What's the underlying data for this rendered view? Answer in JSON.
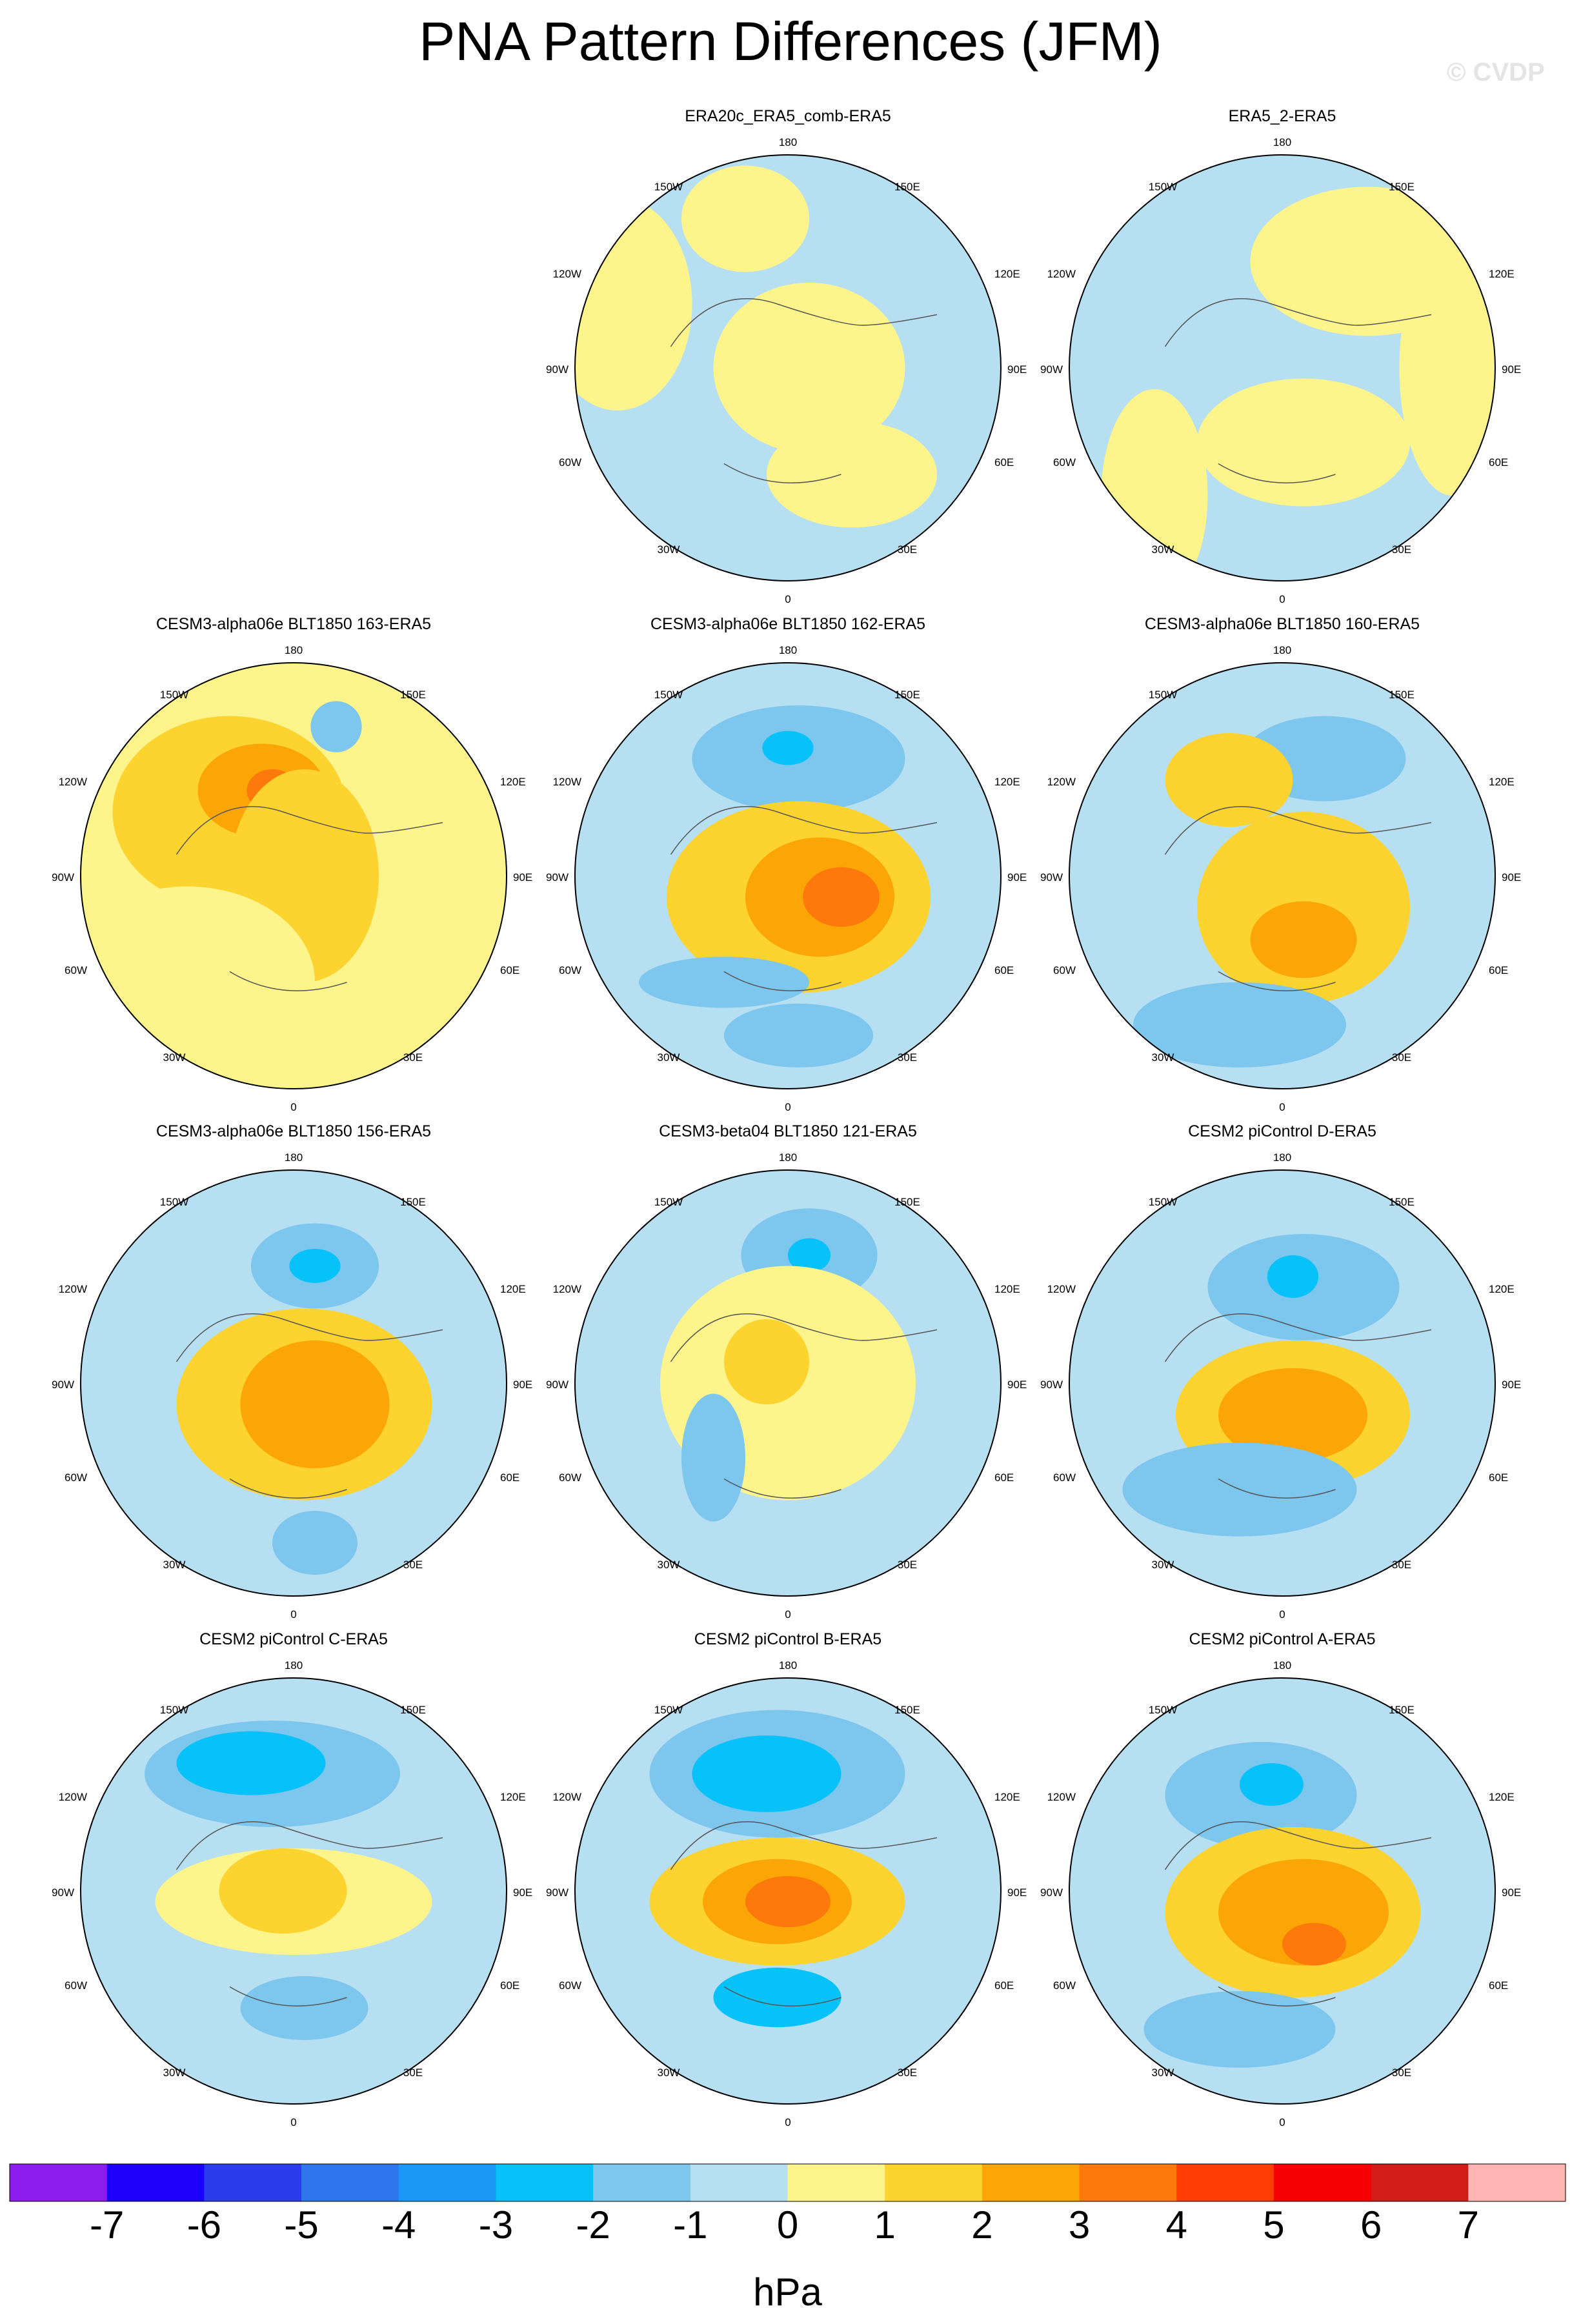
{
  "title": "PNA Pattern Differences (JFM)",
  "copyright": "© CVDP",
  "longitude_labels": {
    "lon180": "180",
    "lon150w": "150W",
    "lon120w": "120W",
    "lon90w": "90W",
    "lon60w": "60W",
    "lon30w": "30W",
    "lon0": "0",
    "lon30e": "30E",
    "lon60e": "60E",
    "lon90e": "90E",
    "lon120e": "120E",
    "lon150e": "150E"
  },
  "colorbar": {
    "unit": "hPa",
    "tick_labels": [
      "-7",
      "-6",
      "-5",
      "-4",
      "-3",
      "-2",
      "-1",
      "0",
      "1",
      "2",
      "3",
      "4",
      "5",
      "6",
      "7"
    ],
    "colors": [
      "#8b1ced",
      "#1c00fb",
      "#2b3cea",
      "#2f76ec",
      "#1b97f8",
      "#07c1f9",
      "#7dc6ee",
      "#b7dff2",
      "#fdf48c",
      "#fcd32f",
      "#fca506",
      "#fd790b",
      "#ff3d05",
      "#f70003",
      "#d01d17",
      "#ffb4b4"
    ]
  },
  "chart_data": {
    "type": "map",
    "projection": "polar stereographic, Northern Hemisphere",
    "variable": "PNA pattern difference (JFM)",
    "units": "hPa",
    "contour_levels": [
      -7,
      -6,
      -5,
      -4,
      -3,
      -2,
      -1,
      0,
      1,
      2,
      3,
      4,
      5,
      6,
      7
    ],
    "panels": [
      {
        "title": null
      },
      {
        "title": "ERA20c_ERA5_comb-ERA5",
        "range_hPa": [
          -1,
          1
        ]
      },
      {
        "title": "ERA5_2-ERA5",
        "range_hPa": [
          -1,
          1
        ]
      },
      {
        "title": "CESM3-alpha06e BLT1850 163-ERA5",
        "range_hPa": [
          -2,
          4
        ]
      },
      {
        "title": "CESM3-alpha06e BLT1850 162-ERA5",
        "range_hPa": [
          -3,
          4
        ]
      },
      {
        "title": "CESM3-alpha06e BLT1850 160-ERA5",
        "range_hPa": [
          -2,
          3
        ]
      },
      {
        "title": "CESM3-alpha06e BLT1850 156-ERA5",
        "range_hPa": [
          -3,
          3
        ]
      },
      {
        "title": "CESM3-beta04 BLT1850 121-ERA5",
        "range_hPa": [
          -3,
          2
        ]
      },
      {
        "title": "CESM2 piControl D-ERA5",
        "range_hPa": [
          -3,
          3
        ]
      },
      {
        "title": "CESM2 piControl C-ERA5",
        "range_hPa": [
          -3,
          2
        ]
      },
      {
        "title": "CESM2 piControl B-ERA5",
        "range_hPa": [
          -3,
          4
        ]
      },
      {
        "title": "CESM2 piControl A-ERA5",
        "range_hPa": [
          -3,
          4
        ]
      }
    ]
  }
}
